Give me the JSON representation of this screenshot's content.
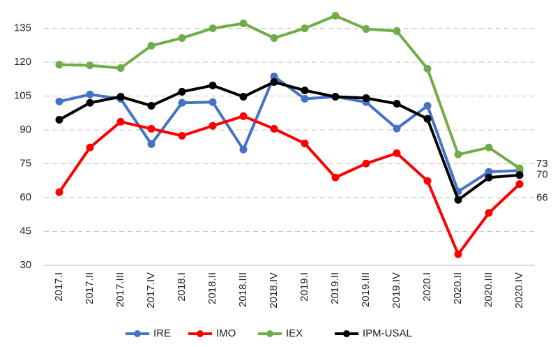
{
  "chart_data": {
    "type": "line",
    "categories": [
      "2017.I",
      "2017.II",
      "2017.III",
      "2017.IV",
      "2018.I",
      "2018.II",
      "2018.III",
      "2018.IV",
      "2019.I",
      "2019.II",
      "2019.III",
      "2019.IV",
      "2020.I",
      "2020.II",
      "2020.III",
      "2020.IV"
    ],
    "series": [
      {
        "name": "IRE",
        "color": "#4472c4",
        "values": [
          102.6,
          105.7,
          103.8,
          83.7,
          102,
          102.3,
          81.3,
          113.7,
          103.8,
          104.7,
          102.3,
          90.6,
          100.7,
          62.7,
          71.4,
          72
        ]
      },
      {
        "name": "IMO",
        "color": "#ff0000",
        "values": [
          62.4,
          82.2,
          93.6,
          90.5,
          87.4,
          91.8,
          96.1,
          90.5,
          84,
          68.9,
          75.1,
          79.7,
          67.4,
          34.9,
          53.2,
          66
        ]
      },
      {
        "name": "IEX",
        "color": "#70ad47",
        "values": [
          118.9,
          118.6,
          117.4,
          127.3,
          130.7,
          135,
          137.2,
          130.7,
          135,
          140.6,
          134.7,
          133.8,
          117.1,
          79.1,
          82.2,
          73
        ]
      },
      {
        "name": "IPM-USAL",
        "color": "#000000",
        "values": [
          94.5,
          102,
          104.7,
          100.7,
          106.9,
          109.7,
          104.7,
          111.2,
          107.5,
          104.7,
          104.1,
          101.6,
          94.9,
          59,
          68.9,
          70
        ]
      }
    ],
    "ylim": [
      30,
      144
    ],
    "yticks": [
      30,
      45,
      60,
      75,
      90,
      105,
      120,
      135
    ],
    "grid": true,
    "legend": "bottom"
  }
}
